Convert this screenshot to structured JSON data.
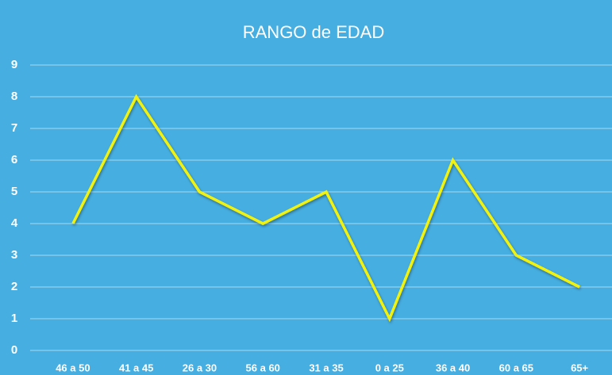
{
  "chart_data": {
    "type": "line",
    "title": "RANGO de EDAD",
    "categories": [
      "46 a 50",
      "41 a 45",
      "26 a 30",
      "56 a 60",
      "31 a 35",
      "0 a 25",
      "36 a 40",
      "60 a 65",
      "65+"
    ],
    "series": [
      {
        "name": "RANGO de EDAD",
        "color": "#f2f20a",
        "values": [
          4,
          8,
          5,
          4,
          5,
          1,
          6,
          3,
          2
        ]
      }
    ],
    "ylim": [
      0,
      9
    ],
    "yticks": [
      0,
      1,
      2,
      3,
      4,
      5,
      6,
      7,
      8,
      9
    ],
    "grid": true
  }
}
